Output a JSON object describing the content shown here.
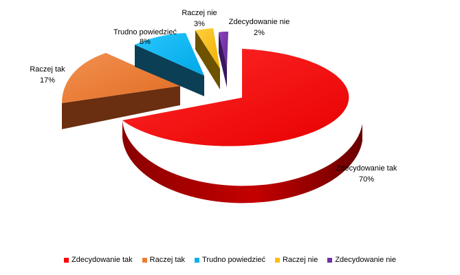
{
  "chart_data": {
    "type": "pie",
    "style": "3d-exploded",
    "categories": [
      "Zdecydowanie tak",
      "Raczej tak",
      "Trudno powiedzieć",
      "Raczej nie",
      "Zdecydowanie nie"
    ],
    "values": [
      70,
      17,
      8,
      3,
      2
    ],
    "value_labels": [
      "70%",
      "17%",
      "8%",
      "3%",
      "2%"
    ],
    "colors": [
      "#FF0000",
      "#ED7D31",
      "#00B0F0",
      "#FFC000",
      "#7030A0"
    ],
    "legend_position": "bottom"
  }
}
